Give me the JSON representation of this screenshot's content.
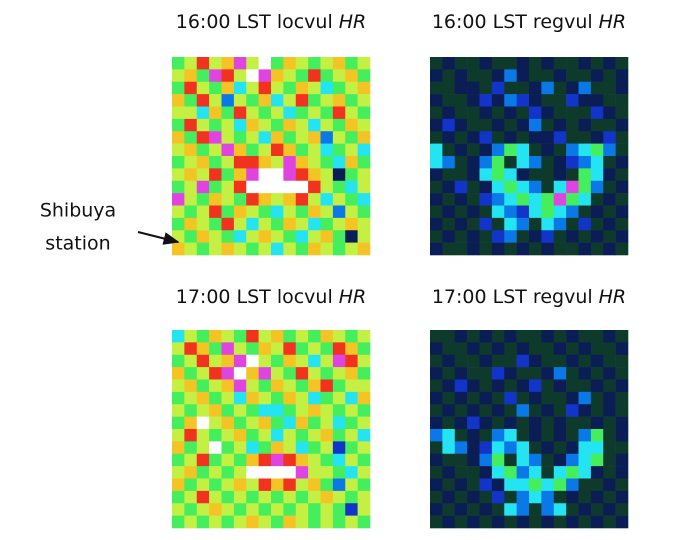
{
  "chart_data": [
    {
      "type": "heatmap",
      "title": "16:00 LST locvul",
      "title_italic": "HR",
      "annotation": [
        "Shibuya",
        "station"
      ],
      "colormap": [
        "#0b1d55",
        "#0e3a2c",
        "#1234c8",
        "#0a78e6",
        "#24e4f2",
        "#44ee5c",
        "#c4f044",
        "#f4c424",
        "#f0321e",
        "#e044e0",
        "#ffffff"
      ],
      "values": [
        [
          5,
          6,
          8,
          6,
          7,
          9,
          6,
          10,
          5,
          7,
          6,
          5,
          6,
          7,
          5,
          6
        ],
        [
          6,
          7,
          5,
          9,
          8,
          6,
          10,
          9,
          7,
          6,
          5,
          8,
          5,
          6,
          7,
          5
        ],
        [
          5,
          8,
          6,
          5,
          7,
          4,
          6,
          8,
          6,
          5,
          7,
          6,
          4,
          5,
          6,
          7
        ],
        [
          7,
          5,
          8,
          6,
          3,
          6,
          5,
          7,
          4,
          6,
          8,
          5,
          6,
          7,
          5,
          6
        ],
        [
          6,
          6,
          4,
          7,
          5,
          8,
          6,
          5,
          6,
          4,
          5,
          6,
          5,
          8,
          6,
          5
        ],
        [
          5,
          8,
          6,
          5,
          6,
          4,
          7,
          6,
          5,
          7,
          6,
          4,
          6,
          5,
          7,
          6
        ],
        [
          7,
          5,
          8,
          9,
          6,
          5,
          6,
          4,
          7,
          5,
          6,
          7,
          3,
          6,
          5,
          7
        ],
        [
          6,
          7,
          5,
          6,
          9,
          7,
          5,
          6,
          8,
          7,
          5,
          6,
          4,
          5,
          6,
          4
        ],
        [
          5,
          6,
          7,
          5,
          6,
          8,
          8,
          7,
          6,
          9,
          7,
          6,
          5,
          4,
          7,
          5
        ],
        [
          6,
          7,
          6,
          8,
          5,
          7,
          9,
          10,
          10,
          9,
          8,
          7,
          6,
          0,
          5,
          6
        ],
        [
          5,
          6,
          9,
          5,
          6,
          8,
          10,
          10,
          10,
          10,
          10,
          8,
          6,
          5,
          4,
          6
        ],
        [
          9,
          6,
          5,
          7,
          6,
          5,
          8,
          7,
          6,
          7,
          8,
          6,
          4,
          6,
          5,
          4
        ],
        [
          6,
          5,
          6,
          8,
          5,
          7,
          6,
          5,
          4,
          6,
          5,
          7,
          6,
          3,
          6,
          5
        ],
        [
          5,
          7,
          6,
          5,
          8,
          6,
          4,
          6,
          5,
          7,
          6,
          4,
          5,
          6,
          7,
          6
        ],
        [
          6,
          5,
          7,
          6,
          5,
          4,
          6,
          7,
          6,
          5,
          4,
          6,
          7,
          5,
          0,
          6
        ],
        [
          7,
          6,
          5,
          6,
          7,
          6,
          5,
          6,
          4,
          6,
          5,
          7,
          6,
          5,
          6,
          7
        ]
      ]
    },
    {
      "type": "heatmap",
      "title": "16:00 LST regvul",
      "title_italic": "HR",
      "colormap": [
        "#0b1d55",
        "#0e3a2c",
        "#1234c8",
        "#0a78e6",
        "#24e4f2",
        "#44ee5c",
        "#c4f044",
        "#f4c424",
        "#f0321e",
        "#e044e0",
        "#ffffff"
      ],
      "values": [
        [
          1,
          0,
          1,
          1,
          0,
          1,
          1,
          0,
          1,
          0,
          1,
          1,
          0,
          1,
          0,
          1
        ],
        [
          0,
          1,
          0,
          1,
          1,
          0,
          3,
          0,
          1,
          1,
          0,
          1,
          1,
          0,
          1,
          0
        ],
        [
          1,
          1,
          0,
          0,
          1,
          2,
          1,
          1,
          0,
          3,
          1,
          0,
          3,
          1,
          1,
          0
        ],
        [
          0,
          1,
          1,
          0,
          2,
          0,
          3,
          2,
          0,
          1,
          1,
          2,
          0,
          0,
          1,
          1
        ],
        [
          1,
          0,
          1,
          1,
          0,
          1,
          0,
          1,
          2,
          0,
          1,
          1,
          1,
          2,
          0,
          1
        ],
        [
          0,
          2,
          0,
          1,
          1,
          0,
          1,
          0,
          3,
          1,
          0,
          1,
          0,
          1,
          1,
          0
        ],
        [
          1,
          0,
          1,
          0,
          2,
          1,
          0,
          1,
          0,
          0,
          2,
          1,
          1,
          0,
          2,
          1
        ],
        [
          4,
          1,
          0,
          1,
          0,
          3,
          5,
          4,
          1,
          0,
          1,
          3,
          4,
          5,
          3,
          1
        ],
        [
          4,
          3,
          1,
          0,
          3,
          5,
          1,
          4,
          3,
          1,
          0,
          2,
          3,
          4,
          1,
          0
        ],
        [
          0,
          1,
          1,
          0,
          4,
          5,
          4,
          0,
          1,
          1,
          0,
          1,
          5,
          4,
          0,
          1
        ],
        [
          1,
          0,
          2,
          1,
          0,
          4,
          5,
          4,
          3,
          1,
          4,
          9,
          5,
          3,
          1,
          0
        ],
        [
          0,
          1,
          0,
          1,
          2,
          3,
          4,
          5,
          4,
          5,
          9,
          5,
          4,
          1,
          0,
          1
        ],
        [
          1,
          0,
          1,
          0,
          1,
          4,
          3,
          2,
          4,
          5,
          4,
          3,
          1,
          0,
          1,
          0
        ],
        [
          0,
          1,
          0,
          1,
          2,
          1,
          4,
          3,
          1,
          4,
          3,
          1,
          2,
          1,
          0,
          1
        ],
        [
          1,
          0,
          1,
          0,
          1,
          2,
          3,
          1,
          0,
          2,
          1,
          0,
          1,
          0,
          1,
          0
        ],
        [
          0,
          1,
          1,
          0,
          1,
          0,
          1,
          0,
          1,
          0,
          1,
          1,
          0,
          1,
          0,
          1
        ]
      ]
    },
    {
      "type": "heatmap",
      "title": "17:00 LST locvul",
      "title_italic": "HR",
      "colormap": [
        "#0b1d55",
        "#0e3a2c",
        "#1234c8",
        "#0a78e6",
        "#24e4f2",
        "#44ee5c",
        "#c4f044",
        "#f4c424",
        "#f0321e",
        "#e044e0",
        "#ffffff"
      ],
      "values": [
        [
          4,
          6,
          5,
          7,
          6,
          5,
          8,
          6,
          7,
          5,
          6,
          5,
          7,
          6,
          5,
          6
        ],
        [
          6,
          8,
          7,
          5,
          9,
          6,
          5,
          7,
          6,
          8,
          5,
          6,
          5,
          8,
          7,
          5
        ],
        [
          5,
          6,
          8,
          6,
          7,
          9,
          10,
          6,
          5,
          7,
          6,
          4,
          6,
          9,
          8,
          6
        ],
        [
          7,
          5,
          6,
          8,
          9,
          10,
          7,
          9,
          6,
          5,
          8,
          6,
          5,
          6,
          7,
          5
        ],
        [
          6,
          7,
          5,
          6,
          7,
          9,
          6,
          5,
          7,
          6,
          5,
          7,
          8,
          5,
          6,
          6
        ],
        [
          5,
          6,
          7,
          5,
          6,
          4,
          7,
          6,
          5,
          7,
          6,
          4,
          5,
          6,
          4,
          7
        ],
        [
          6,
          5,
          6,
          7,
          5,
          6,
          5,
          4,
          4,
          5,
          6,
          7,
          6,
          5,
          6,
          5
        ],
        [
          5,
          7,
          10,
          6,
          7,
          5,
          6,
          7,
          5,
          4,
          7,
          5,
          6,
          4,
          5,
          6
        ],
        [
          6,
          8,
          6,
          5,
          6,
          7,
          5,
          6,
          4,
          6,
          5,
          6,
          7,
          5,
          6,
          4
        ],
        [
          7,
          5,
          6,
          10,
          5,
          6,
          4,
          5,
          7,
          6,
          4,
          5,
          6,
          2,
          5,
          6
        ],
        [
          5,
          6,
          8,
          5,
          6,
          5,
          7,
          8,
          9,
          8,
          7,
          6,
          5,
          4,
          6,
          5
        ],
        [
          6,
          7,
          5,
          6,
          5,
          6,
          10,
          10,
          10,
          10,
          9,
          6,
          6,
          5,
          4,
          6
        ],
        [
          7,
          5,
          6,
          5,
          6,
          7,
          6,
          8,
          7,
          8,
          6,
          7,
          5,
          3,
          6,
          5
        ],
        [
          5,
          6,
          8,
          6,
          5,
          6,
          5,
          6,
          5,
          6,
          5,
          6,
          7,
          6,
          5,
          6
        ],
        [
          6,
          5,
          6,
          7,
          6,
          5,
          6,
          5,
          6,
          5,
          6,
          5,
          6,
          5,
          2,
          6
        ],
        [
          5,
          6,
          5,
          6,
          5,
          6,
          7,
          6,
          5,
          7,
          6,
          5,
          6,
          5,
          6,
          5
        ]
      ]
    },
    {
      "type": "heatmap",
      "title": "17:00 LST regvul",
      "title_italic": "HR",
      "colormap": [
        "#0b1d55",
        "#0e3a2c",
        "#1234c8",
        "#0a78e6",
        "#24e4f2",
        "#44ee5c",
        "#c4f044",
        "#f4c424",
        "#f0321e",
        "#e044e0",
        "#ffffff"
      ],
      "values": [
        [
          1,
          1,
          0,
          1,
          0,
          1,
          0,
          1,
          1,
          0,
          1,
          0,
          1,
          1,
          0,
          1
        ],
        [
          0,
          1,
          1,
          0,
          1,
          0,
          1,
          0,
          1,
          1,
          0,
          1,
          0,
          1,
          1,
          0
        ],
        [
          1,
          0,
          1,
          1,
          0,
          1,
          1,
          2,
          0,
          1,
          1,
          0,
          1,
          0,
          1,
          1
        ],
        [
          0,
          1,
          0,
          1,
          1,
          2,
          0,
          1,
          1,
          0,
          3,
          1,
          0,
          1,
          0,
          1
        ],
        [
          1,
          0,
          2,
          0,
          1,
          0,
          1,
          0,
          2,
          1,
          0,
          1,
          1,
          0,
          1,
          0
        ],
        [
          0,
          1,
          0,
          1,
          0,
          1,
          2,
          1,
          0,
          1,
          1,
          0,
          3,
          1,
          0,
          1
        ],
        [
          1,
          0,
          1,
          0,
          1,
          0,
          1,
          3,
          1,
          0,
          1,
          2,
          0,
          1,
          0,
          1
        ],
        [
          0,
          1,
          0,
          2,
          0,
          1,
          0,
          1,
          0,
          1,
          0,
          1,
          1,
          0,
          1,
          0
        ],
        [
          3,
          4,
          1,
          0,
          1,
          3,
          4,
          1,
          0,
          1,
          0,
          1,
          3,
          5,
          1,
          0
        ],
        [
          1,
          4,
          3,
          0,
          2,
          4,
          3,
          4,
          1,
          0,
          1,
          0,
          4,
          4,
          1,
          1
        ],
        [
          0,
          1,
          1,
          0,
          3,
          5,
          1,
          4,
          3,
          1,
          0,
          3,
          4,
          5,
          1,
          0
        ],
        [
          1,
          0,
          1,
          1,
          0,
          4,
          5,
          3,
          4,
          1,
          4,
          5,
          4,
          0,
          1,
          0
        ],
        [
          0,
          1,
          0,
          1,
          2,
          0,
          4,
          4,
          5,
          4,
          5,
          3,
          1,
          1,
          0,
          1
        ],
        [
          1,
          0,
          1,
          0,
          1,
          2,
          1,
          3,
          4,
          3,
          1,
          0,
          1,
          0,
          1,
          0
        ],
        [
          0,
          1,
          0,
          1,
          0,
          1,
          4,
          3,
          1,
          3,
          4,
          1,
          0,
          1,
          0,
          1
        ],
        [
          1,
          0,
          1,
          0,
          1,
          0,
          1,
          0,
          1,
          0,
          1,
          0,
          1,
          0,
          1,
          0
        ]
      ]
    }
  ]
}
